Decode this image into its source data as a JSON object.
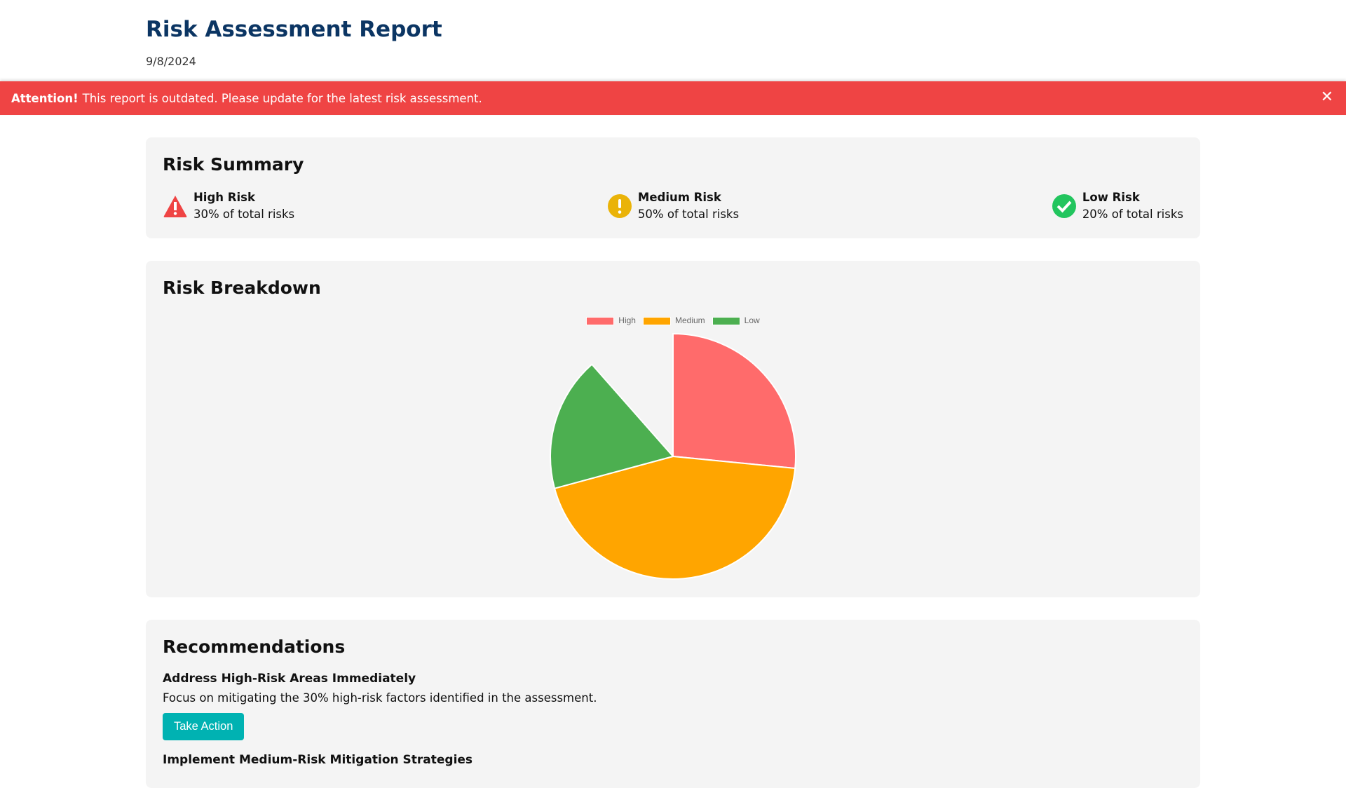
{
  "header": {
    "title": "Risk Assessment Report",
    "date": "9/8/2024"
  },
  "banner": {
    "strong": "Attention!",
    "message": "This report is outdated. Please update for the latest risk assessment.",
    "close": "✕"
  },
  "summary": {
    "title": "Risk Summary",
    "items": [
      {
        "label": "High Risk",
        "sub": "30% of total risks",
        "color": "#ef4444"
      },
      {
        "label": "Medium Risk",
        "sub": "50% of total risks",
        "color": "#eab308"
      },
      {
        "label": "Low Risk",
        "sub": "20% of total risks",
        "color": "#22c55e"
      }
    ]
  },
  "breakdown": {
    "title": "Risk Breakdown"
  },
  "chart_data": {
    "type": "pie",
    "categories": [
      "High",
      "Medium",
      "Low"
    ],
    "values": [
      30,
      50,
      20
    ],
    "colors": [
      "#ff6b6b",
      "#ffa500",
      "#4caf50"
    ],
    "unfilled_remainder": 13,
    "legend": "top"
  },
  "recommendations": {
    "title": "Recommendations",
    "items": [
      {
        "heading": "Address High-Risk Areas Immediately",
        "text": "Focus on mitigating the 30% high-risk factors identified in the assessment.",
        "button": "Take Action"
      },
      {
        "heading": "Implement Medium-Risk Mitigation Strategies"
      }
    ]
  }
}
